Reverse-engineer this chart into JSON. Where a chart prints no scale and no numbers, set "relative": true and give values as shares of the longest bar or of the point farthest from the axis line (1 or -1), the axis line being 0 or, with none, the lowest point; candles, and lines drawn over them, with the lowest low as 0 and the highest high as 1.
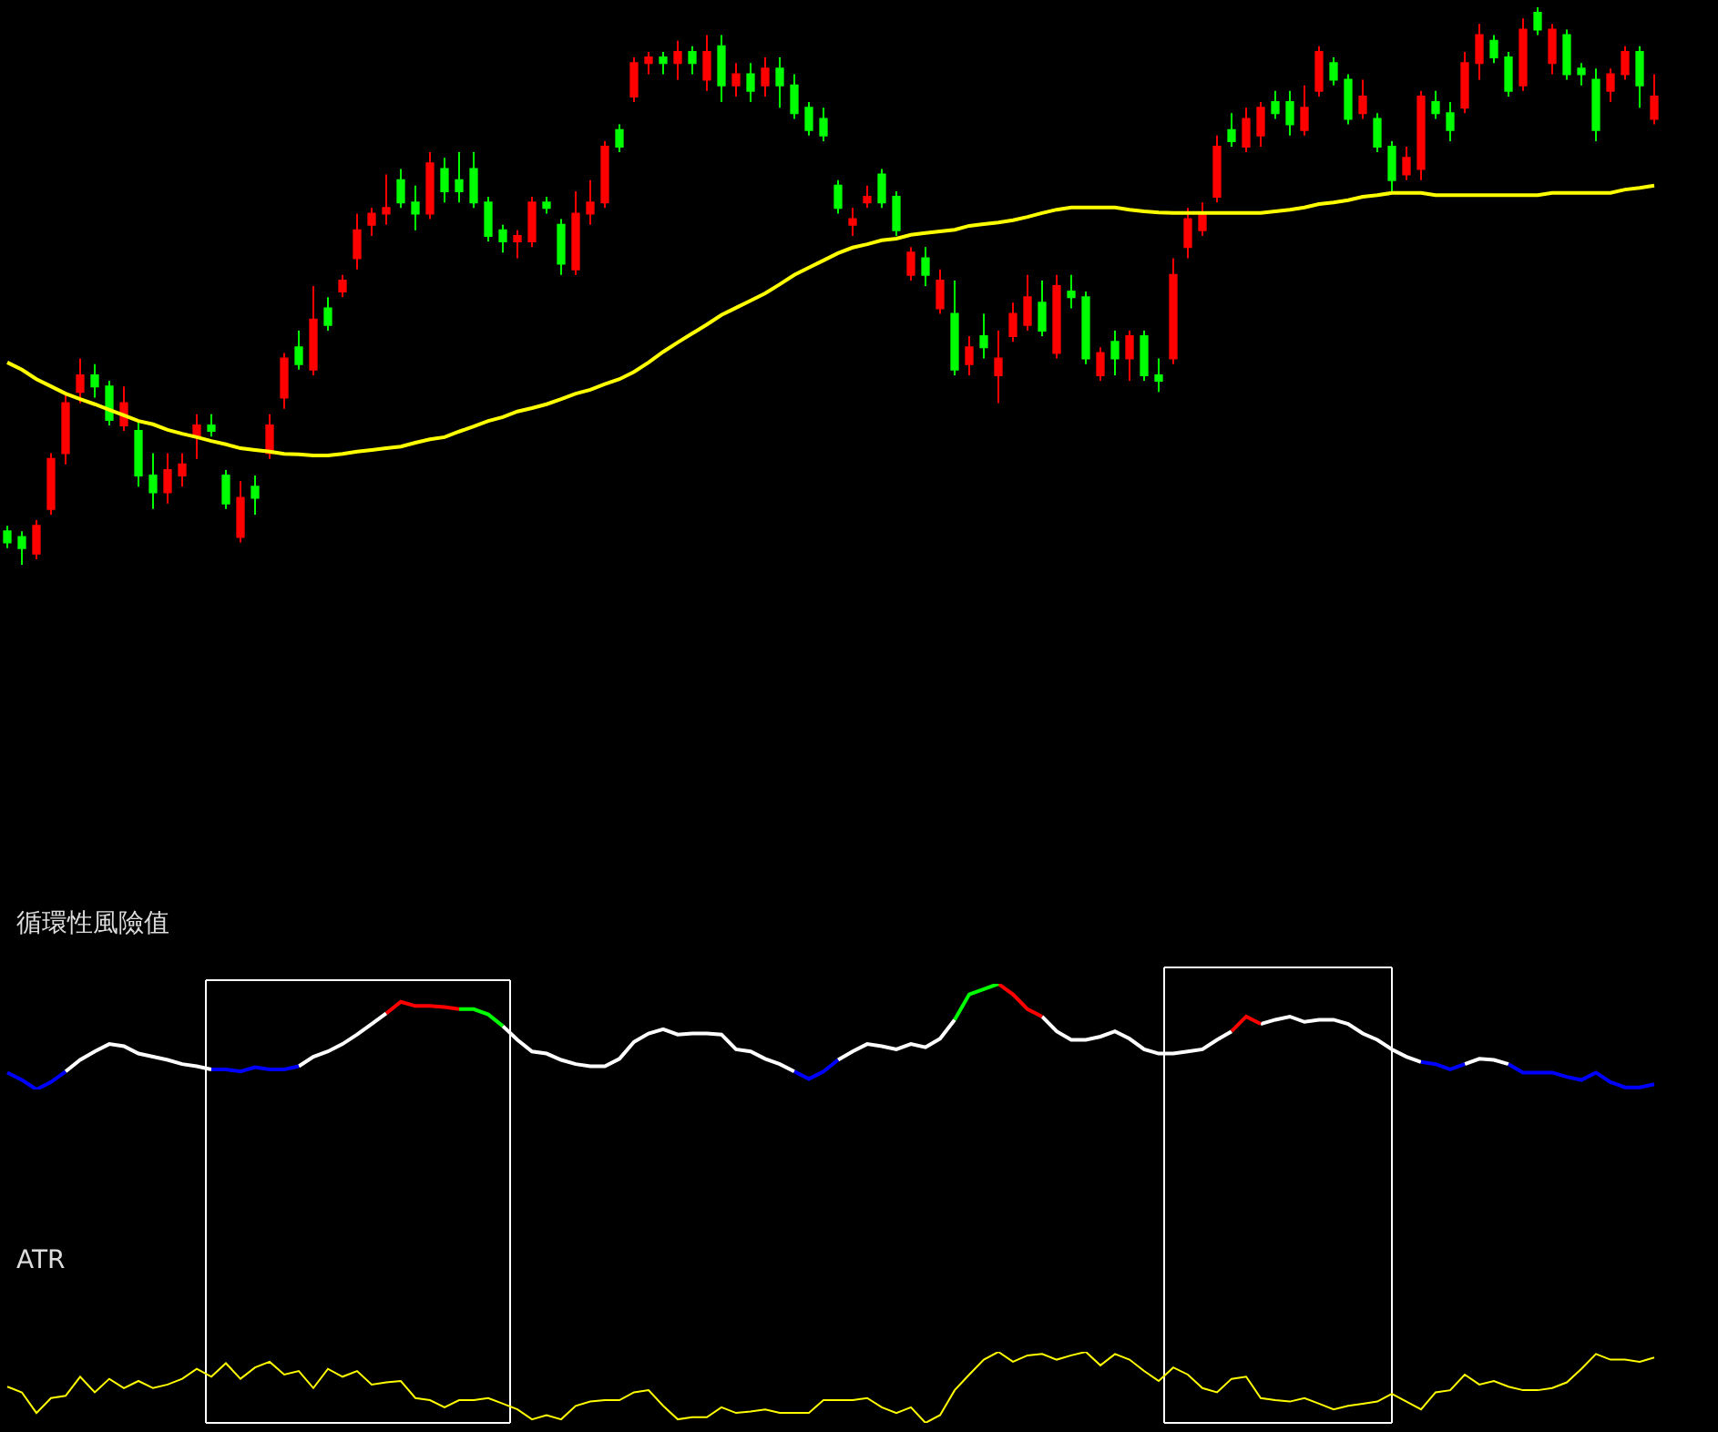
{
  "chart_data": [
    {
      "type": "candlestick",
      "relative": true,
      "categories": [
        null,
        null,
        null,
        null,
        null,
        null,
        null,
        null,
        null,
        null,
        null,
        null,
        null,
        null,
        null,
        null,
        null,
        null,
        null,
        null,
        null,
        null,
        null,
        null,
        null,
        null,
        null,
        null,
        null,
        null,
        null,
        null,
        null,
        null,
        null,
        null,
        null,
        null,
        null,
        null,
        null,
        null,
        null,
        null,
        null,
        null,
        null,
        null,
        null,
        null,
        null,
        null,
        null,
        null,
        null,
        null,
        null,
        null,
        null,
        null,
        null,
        null,
        null,
        null,
        null,
        null,
        null,
        null,
        null,
        null,
        null,
        null,
        null,
        null,
        null,
        null,
        null,
        null,
        null,
        null,
        null,
        null,
        null,
        null,
        null,
        null,
        null,
        null,
        null,
        null,
        null,
        null,
        null,
        null,
        null,
        null,
        null,
        null,
        null,
        null,
        null,
        null,
        null,
        null,
        null,
        null,
        null,
        null,
        null,
        null,
        null,
        null,
        null,
        null
      ],
      "ohlc": [
        [
          0.06,
          0.07,
          0.03,
          0.04
        ],
        [
          0.05,
          0.06,
          0,
          0.03
        ],
        [
          0.02,
          0.08,
          0.01,
          0.07
        ],
        [
          0.1,
          0.2,
          0.09,
          0.19
        ],
        [
          0.2,
          0.31,
          0.18,
          0.29
        ],
        [
          0.31,
          0.37,
          0.29,
          0.34
        ],
        [
          0.34,
          0.36,
          0.3,
          0.32
        ],
        [
          0.32,
          0.33,
          0.25,
          0.26
        ],
        [
          0.25,
          0.32,
          0.24,
          0.29
        ],
        [
          0.24,
          0.26,
          0.14,
          0.16
        ],
        [
          0.16,
          0.2,
          0.1,
          0.13
        ],
        [
          0.13,
          0.2,
          0.11,
          0.17
        ],
        [
          0.16,
          0.2,
          0.14,
          0.18
        ],
        [
          0.23,
          0.27,
          0.19,
          0.25
        ],
        [
          0.25,
          0.27,
          0.23,
          0.24
        ],
        [
          0.16,
          0.17,
          0.1,
          0.11
        ],
        [
          0.05,
          0.15,
          0.04,
          0.12
        ],
        [
          0.14,
          0.16,
          0.09,
          0.12
        ],
        [
          0.2,
          0.27,
          0.19,
          0.25
        ],
        [
          0.3,
          0.38,
          0.28,
          0.37
        ],
        [
          0.39,
          0.42,
          0.35,
          0.36
        ],
        [
          0.35,
          0.5,
          0.34,
          0.44
        ],
        [
          0.46,
          0.48,
          0.42,
          0.43
        ],
        [
          0.49,
          0.52,
          0.48,
          0.51
        ],
        [
          0.55,
          0.63,
          0.53,
          0.6
        ],
        [
          0.61,
          0.64,
          0.59,
          0.63
        ],
        [
          0.63,
          0.7,
          0.61,
          0.64
        ],
        [
          0.69,
          0.71,
          0.64,
          0.65
        ],
        [
          0.65,
          0.68,
          0.6,
          0.63
        ],
        [
          0.63,
          0.74,
          0.62,
          0.72
        ],
        [
          0.71,
          0.73,
          0.65,
          0.67
        ],
        [
          0.69,
          0.74,
          0.65,
          0.67
        ],
        [
          0.71,
          0.74,
          0.64,
          0.65
        ],
        [
          0.65,
          0.66,
          0.58,
          0.59
        ],
        [
          0.6,
          0.61,
          0.56,
          0.58
        ],
        [
          0.58,
          0.6,
          0.55,
          0.59
        ],
        [
          0.58,
          0.66,
          0.57,
          0.65
        ],
        [
          0.65,
          0.66,
          0.63,
          0.64
        ],
        [
          0.61,
          0.62,
          0.52,
          0.54
        ],
        [
          0.53,
          0.67,
          0.52,
          0.63
        ],
        [
          0.63,
          0.69,
          0.61,
          0.65
        ],
        [
          0.65,
          0.76,
          0.64,
          0.75
        ],
        [
          0.78,
          0.79,
          0.74,
          0.75
        ],
        [
          0.84,
          0.91,
          0.83,
          0.9
        ],
        [
          0.9,
          0.92,
          0.88,
          0.91
        ],
        [
          0.91,
          0.92,
          0.88,
          0.9
        ],
        [
          0.9,
          0.94,
          0.87,
          0.92
        ],
        [
          0.92,
          0.93,
          0.88,
          0.9
        ],
        [
          0.87,
          0.95,
          0.85,
          0.92
        ],
        [
          0.93,
          0.95,
          0.83,
          0.86
        ],
        [
          0.86,
          0.9,
          0.84,
          0.88
        ],
        [
          0.88,
          0.9,
          0.83,
          0.85
        ],
        [
          0.86,
          0.91,
          0.84,
          0.89
        ],
        [
          0.89,
          0.91,
          0.82,
          0.86
        ],
        [
          0.86,
          0.88,
          0.8,
          0.81
        ],
        [
          0.82,
          0.83,
          0.77,
          0.78
        ],
        [
          0.8,
          0.82,
          0.76,
          0.77
        ],
        [
          0.68,
          0.69,
          0.63,
          0.64
        ],
        [
          0.61,
          0.64,
          0.59,
          0.62
        ],
        [
          0.65,
          0.68,
          0.64,
          0.66
        ],
        [
          0.7,
          0.71,
          0.64,
          0.65
        ],
        [
          0.66,
          0.67,
          0.59,
          0.6
        ],
        [
          0.52,
          0.57,
          0.51,
          0.56
        ],
        [
          0.55,
          0.57,
          0.5,
          0.52
        ],
        [
          0.46,
          0.53,
          0.45,
          0.51
        ],
        [
          0.45,
          0.51,
          0.34,
          0.35
        ],
        [
          0.36,
          0.41,
          0.34,
          0.39
        ],
        [
          0.41,
          0.45,
          0.37,
          0.39
        ],
        [
          0.34,
          0.42,
          0.29,
          0.37
        ],
        [
          0.41,
          0.47,
          0.4,
          0.45
        ],
        [
          0.43,
          0.52,
          0.42,
          0.48
        ],
        [
          0.47,
          0.51,
          0.41,
          0.42
        ],
        [
          0.38,
          0.52,
          0.37,
          0.5
        ],
        [
          0.49,
          0.52,
          0.46,
          0.48
        ],
        [
          0.48,
          0.49,
          0.36,
          0.37
        ],
        [
          0.34,
          0.39,
          0.33,
          0.38
        ],
        [
          0.4,
          0.42,
          0.34,
          0.37
        ],
        [
          0.37,
          0.42,
          0.33,
          0.41
        ],
        [
          0.41,
          0.42,
          0.33,
          0.34
        ],
        [
          0.34,
          0.37,
          0.31,
          0.33
        ],
        [
          0.37,
          0.55,
          0.36,
          0.52
        ],
        [
          0.57,
          0.64,
          0.55,
          0.62
        ],
        [
          0.6,
          0.65,
          0.59,
          0.63
        ],
        [
          0.66,
          0.77,
          0.65,
          0.75
        ],
        [
          0.78,
          0.81,
          0.75,
          0.76
        ],
        [
          0.75,
          0.82,
          0.74,
          0.8
        ],
        [
          0.77,
          0.83,
          0.75,
          0.82
        ],
        [
          0.83,
          0.85,
          0.8,
          0.81
        ],
        [
          0.83,
          0.85,
          0.77,
          0.79
        ],
        [
          0.78,
          0.86,
          0.77,
          0.82
        ],
        [
          0.85,
          0.93,
          0.84,
          0.92
        ],
        [
          0.9,
          0.91,
          0.86,
          0.87
        ],
        [
          0.87,
          0.88,
          0.79,
          0.8
        ],
        [
          0.81,
          0.87,
          0.8,
          0.84
        ],
        [
          0.8,
          0.81,
          0.74,
          0.75
        ],
        [
          0.75,
          0.76,
          0.67,
          0.69
        ],
        [
          0.7,
          0.75,
          0.69,
          0.73
        ],
        [
          0.71,
          0.85,
          0.69,
          0.84
        ],
        [
          0.83,
          0.85,
          0.8,
          0.81
        ],
        [
          0.81,
          0.83,
          0.76,
          0.78
        ],
        [
          0.82,
          0.92,
          0.81,
          0.9
        ],
        [
          0.9,
          0.97,
          0.87,
          0.95
        ],
        [
          0.94,
          0.95,
          0.9,
          0.91
        ],
        [
          0.91,
          0.92,
          0.84,
          0.85
        ],
        [
          0.86,
          0.98,
          0.85,
          0.96
        ],
        [
          0.99,
          1,
          0.95,
          0.96
        ],
        [
          0.9,
          0.97,
          0.88,
          0.96
        ],
        [
          0.95,
          0.96,
          0.87,
          0.88
        ],
        [
          0.89,
          0.9,
          0.86,
          0.88
        ],
        [
          0.87,
          0.89,
          0.76,
          0.78
        ],
        [
          0.85,
          0.89,
          0.83,
          0.88
        ],
        [
          0.88,
          0.93,
          0.87,
          0.92
        ],
        [
          0.92,
          0.93,
          0.82,
          0.86
        ],
        [
          0.8,
          0.88,
          0.79,
          0.84
        ]
      ],
      "colors": [
        "#00ff00",
        "#00ff00",
        "#ff0000",
        "#ff0000",
        "#ff0000",
        "#ff0000",
        "#00ff00",
        "#00ff00",
        "#ff0000",
        "#00ff00",
        "#00ff00",
        "#ff0000",
        "#ff0000",
        "#ff0000",
        "#00ff00",
        "#00ff00",
        "#ff0000",
        "#00ff00",
        "#ff0000",
        "#ff0000",
        "#00ff00",
        "#ff0000",
        "#00ff00",
        "#ff0000",
        "#ff0000",
        "#ff0000",
        "#ff0000",
        "#00ff00",
        "#00ff00",
        "#ff0000",
        "#00ff00",
        "#00ff00",
        "#00ff00",
        "#00ff00",
        "#00ff00",
        "#ff0000",
        "#ff0000",
        "#00ff00",
        "#00ff00",
        "#ff0000",
        "#ff0000",
        "#ff0000",
        "#00ff00",
        "#ff0000",
        "#ff0000",
        "#00ff00",
        "#ff0000",
        "#00ff00",
        "#ff0000",
        "#00ff00",
        "#ff0000",
        "#00ff00",
        "#ff0000",
        "#00ff00",
        "#00ff00",
        "#00ff00",
        "#00ff00",
        "#00ff00",
        "#ff0000",
        "#ff0000",
        "#00ff00",
        "#00ff00",
        "#ff0000",
        "#00ff00",
        "#ff0000",
        "#00ff00",
        "#ff0000",
        "#00ff00",
        "#ff0000",
        "#ff0000",
        "#ff0000",
        "#00ff00",
        "#ff0000",
        "#00ff00",
        "#00ff00",
        "#ff0000",
        "#00ff00",
        "#ff0000",
        "#00ff00",
        "#00ff00",
        "#ff0000",
        "#ff0000",
        "#ff0000",
        "#ff0000",
        "#00ff00",
        "#ff0000",
        "#ff0000",
        "#00ff00",
        "#00ff00",
        "#ff0000",
        "#ff0000",
        "#00ff00",
        "#00ff00",
        "#ff0000",
        "#00ff00",
        "#00ff00",
        "#ff0000",
        "#ff0000",
        "#00ff00",
        "#00ff00",
        "#ff0000",
        "#ff0000",
        "#00ff00",
        "#00ff00",
        "#ff0000",
        "#00ff00",
        "#ff0000",
        "#00ff00",
        "#00ff00",
        "#00ff00",
        "#ff0000",
        "#ff0000",
        "#00ff00",
        "#ff0000"
      ],
      "series": [
        {
          "type": "line",
          "color": "#ffff00",
          "values": [
            0.363,
            0.35,
            0.333,
            0.32,
            0.307,
            0.297,
            0.288,
            0.278,
            0.268,
            0.258,
            0.252,
            0.242,
            0.235,
            0.229,
            0.222,
            0.216,
            0.209,
            0.206,
            0.203,
            0.199,
            0.198,
            0.196,
            0.196,
            0.199,
            0.203,
            0.206,
            0.209,
            0.212,
            0.219,
            0.225,
            0.229,
            0.239,
            0.248,
            0.258,
            0.265,
            0.275,
            0.281,
            0.288,
            0.297,
            0.307,
            0.314,
            0.324,
            0.333,
            0.346,
            0.363,
            0.382,
            0.399,
            0.415,
            0.431,
            0.448,
            0.461,
            0.474,
            0.487,
            0.503,
            0.52,
            0.533,
            0.546,
            0.559,
            0.569,
            0.575,
            0.582,
            0.585,
            0.592,
            0.595,
            0.598,
            0.601,
            0.608,
            0.611,
            0.614,
            0.618,
            0.624,
            0.631,
            0.637,
            0.641,
            0.641,
            0.641,
            0.641,
            0.637,
            0.634,
            0.632,
            0.631,
            0.631,
            0.631,
            0.631,
            0.631,
            0.631,
            0.631,
            0.634,
            0.637,
            0.641,
            0.647,
            0.65,
            0.654,
            0.66,
            0.663,
            0.667,
            0.667,
            0.667,
            0.663,
            0.663,
            0.663,
            0.663,
            0.663,
            0.663,
            0.663,
            0.663,
            0.667,
            0.667,
            0.667,
            0.667,
            0.667,
            0.673,
            0.676,
            0.68
          ]
        }
      ]
    },
    {
      "type": "line",
      "relative": true,
      "title": "循環性風險值",
      "categories": [
        null,
        null,
        null,
        null,
        null,
        null,
        null,
        null,
        null,
        null,
        null,
        null,
        null,
        null,
        null,
        null,
        null,
        null,
        null,
        null,
        null,
        null,
        null,
        null,
        null,
        null,
        null,
        null,
        null,
        null,
        null,
        null,
        null,
        null,
        null,
        null,
        null,
        null,
        null,
        null,
        null,
        null,
        null,
        null,
        null,
        null,
        null,
        null,
        null,
        null,
        null,
        null,
        null,
        null,
        null,
        null,
        null,
        null,
        null,
        null,
        null,
        null,
        null,
        null,
        null,
        null,
        null,
        null,
        null,
        null,
        null,
        null,
        null,
        null,
        null,
        null,
        null,
        null,
        null,
        null,
        null,
        null,
        null,
        null,
        null,
        null,
        null,
        null,
        null,
        null,
        null,
        null,
        null,
        null,
        null,
        null,
        null,
        null,
        null,
        null,
        null,
        null,
        null,
        null,
        null,
        null,
        null,
        null,
        null,
        null,
        null,
        null,
        null,
        null
      ],
      "series": [
        {
          "color": "#ffffff",
          "values": [
            null,
            null,
            null,
            null,
            0.17,
            0.28,
            0.36,
            0.43,
            0.41,
            0.34,
            0.31,
            0.28,
            0.24,
            0.22,
            0.19,
            null,
            null,
            null,
            null,
            null,
            0.22,
            0.31,
            0.36,
            0.43,
            0.52,
            0.62,
            0.72,
            null,
            null,
            null,
            null,
            null,
            null,
            null,
            0.6,
            0.47,
            0.36,
            0.34,
            0.28,
            0.24,
            0.22,
            0.22,
            0.29,
            0.45,
            0.53,
            0.57,
            0.52,
            0.53,
            0.53,
            0.52,
            0.38,
            0.36,
            0.29,
            0.24,
            0.17,
            null,
            null,
            0.28,
            0.36,
            0.43,
            0.41,
            0.38,
            0.43,
            0.4,
            0.48,
            0.66,
            null,
            null,
            null,
            null,
            null,
            0.69,
            0.55,
            0.47,
            0.47,
            0.5,
            0.55,
            0.48,
            0.38,
            0.34,
            0.34,
            0.36,
            0.38,
            0.47,
            0.55,
            null,
            0.62,
            0.66,
            0.69,
            0.64,
            0.66,
            0.66,
            0.62,
            0.53,
            0.47,
            0.38,
            0.31,
            0.26,
            null,
            null,
            0.24,
            0.29,
            0.28,
            0.24,
            null,
            null,
            null,
            null,
            null,
            null,
            null,
            null,
            null,
            null
          ]
        },
        {
          "color": "#0000ff",
          "values": [
            0.16,
            0.09,
            0,
            0.07,
            0.17,
            null,
            null,
            null,
            null,
            null,
            null,
            null,
            null,
            null,
            0.19,
            0.19,
            0.17,
            0.21,
            0.19,
            0.19,
            0.22,
            null,
            null,
            null,
            null,
            null,
            null,
            null,
            null,
            null,
            null,
            null,
            null,
            null,
            null,
            null,
            null,
            null,
            null,
            null,
            null,
            null,
            null,
            null,
            null,
            null,
            null,
            null,
            null,
            null,
            null,
            null,
            null,
            null,
            0.17,
            0.1,
            0.17,
            0.28,
            null,
            null,
            null,
            null,
            null,
            null,
            null,
            null,
            null,
            null,
            null,
            null,
            null,
            null,
            null,
            null,
            null,
            null,
            null,
            null,
            null,
            null,
            null,
            null,
            null,
            null,
            null,
            null,
            null,
            null,
            null,
            null,
            null,
            null,
            null,
            null,
            null,
            null,
            null,
            0.26,
            0.24,
            0.19,
            0.24,
            null,
            null,
            0.24,
            0.16,
            0.16,
            0.16,
            0.12,
            0.09,
            0.16,
            0.07,
            0.02,
            0.02,
            0.05
          ]
        },
        {
          "color": "#ff0000",
          "values": [
            null,
            null,
            null,
            null,
            null,
            null,
            null,
            null,
            null,
            null,
            null,
            null,
            null,
            null,
            null,
            null,
            null,
            null,
            null,
            null,
            null,
            null,
            null,
            null,
            null,
            null,
            0.72,
            0.83,
            0.79,
            0.79,
            0.78,
            0.76,
            null,
            null,
            null,
            null,
            null,
            null,
            null,
            null,
            null,
            null,
            null,
            null,
            null,
            null,
            null,
            null,
            null,
            null,
            null,
            null,
            null,
            null,
            null,
            null,
            null,
            null,
            null,
            null,
            null,
            null,
            null,
            null,
            null,
            null,
            null,
            null,
            1,
            0.9,
            0.76,
            0.69,
            null,
            null,
            null,
            null,
            null,
            null,
            null,
            null,
            null,
            null,
            null,
            null,
            0.55,
            0.69,
            0.62,
            null,
            null,
            null,
            null,
            null,
            null,
            null,
            null,
            null,
            null,
            null,
            null,
            null,
            null,
            null,
            null,
            null,
            null,
            null,
            null,
            null,
            null,
            null,
            null,
            null,
            null,
            null
          ]
        },
        {
          "color": "#00ff00",
          "values": [
            null,
            null,
            null,
            null,
            null,
            null,
            null,
            null,
            null,
            null,
            null,
            null,
            null,
            null,
            null,
            null,
            null,
            null,
            null,
            null,
            null,
            null,
            null,
            null,
            null,
            null,
            null,
            null,
            null,
            null,
            null,
            0.76,
            0.76,
            0.71,
            0.6,
            null,
            null,
            null,
            null,
            null,
            null,
            null,
            null,
            null,
            null,
            null,
            null,
            null,
            null,
            null,
            null,
            null,
            null,
            null,
            null,
            null,
            null,
            null,
            null,
            null,
            null,
            null,
            null,
            null,
            null,
            0.66,
            0.9,
            0.95,
            1,
            null,
            null,
            null,
            null,
            null,
            null,
            null,
            null,
            null,
            null,
            null,
            null,
            null,
            null,
            null,
            null,
            null,
            null,
            null,
            null,
            null,
            null,
            null,
            null,
            null,
            null,
            null,
            null,
            null,
            null,
            null,
            null,
            null,
            null,
            null,
            null,
            null,
            null,
            null,
            null,
            null,
            null,
            null,
            null,
            null
          ]
        }
      ]
    },
    {
      "type": "line",
      "relative": true,
      "title": "ATR",
      "categories": [
        null,
        null,
        null,
        null,
        null,
        null,
        null,
        null,
        null,
        null,
        null,
        null,
        null,
        null,
        null,
        null,
        null,
        null,
        null,
        null,
        null,
        null,
        null,
        null,
        null,
        null,
        null,
        null,
        null,
        null,
        null,
        null,
        null,
        null,
        null,
        null,
        null,
        null,
        null,
        null,
        null,
        null,
        null,
        null,
        null,
        null,
        null,
        null,
        null,
        null,
        null,
        null,
        null,
        null,
        null,
        null,
        null,
        null,
        null,
        null,
        null,
        null,
        null,
        null,
        null,
        null,
        null,
        null,
        null,
        null,
        null,
        null,
        null,
        null,
        null,
        null,
        null,
        null,
        null,
        null,
        null,
        null,
        null,
        null,
        null,
        null,
        null,
        null,
        null,
        null,
        null,
        null,
        null,
        null,
        null,
        null,
        null,
        null,
        null,
        null,
        null,
        null,
        null,
        null,
        null,
        null,
        null,
        null,
        null,
        null,
        null,
        null,
        null,
        null
      ],
      "series": [
        {
          "color": "#ffff00",
          "values": [
            0.51,
            0.43,
            0.14,
            0.35,
            0.38,
            0.65,
            0.43,
            0.62,
            0.49,
            0.59,
            0.49,
            0.54,
            0.62,
            0.76,
            0.65,
            0.84,
            0.62,
            0.78,
            0.86,
            0.68,
            0.73,
            0.49,
            0.76,
            0.65,
            0.73,
            0.54,
            0.57,
            0.59,
            0.35,
            0.32,
            0.22,
            0.32,
            0.32,
            0.35,
            0.27,
            0.19,
            0.05,
            0.11,
            0.05,
            0.24,
            0.3,
            0.32,
            0.32,
            0.43,
            0.46,
            0.24,
            0.05,
            0.08,
            0.08,
            0.22,
            0.14,
            0.16,
            0.19,
            0.14,
            0.14,
            0.14,
            0.32,
            0.32,
            0.32,
            0.35,
            0.22,
            0.14,
            0.22,
            0,
            0.11,
            0.46,
            0.68,
            0.89,
            1,
            0.86,
            0.95,
            0.97,
            0.89,
            0.95,
            1,
            0.81,
            0.97,
            0.89,
            0.73,
            0.59,
            0.78,
            0.68,
            0.49,
            0.43,
            0.62,
            0.65,
            0.35,
            0.32,
            0.3,
            0.35,
            0.27,
            0.19,
            0.24,
            0.27,
            0.3,
            0.41,
            0.3,
            0.19,
            0.43,
            0.46,
            0.68,
            0.54,
            0.59,
            0.51,
            0.46,
            0.46,
            0.49,
            0.57,
            0.76,
            0.97,
            0.89,
            0.89,
            0.86,
            0.92
          ]
        }
      ]
    }
  ]
}
